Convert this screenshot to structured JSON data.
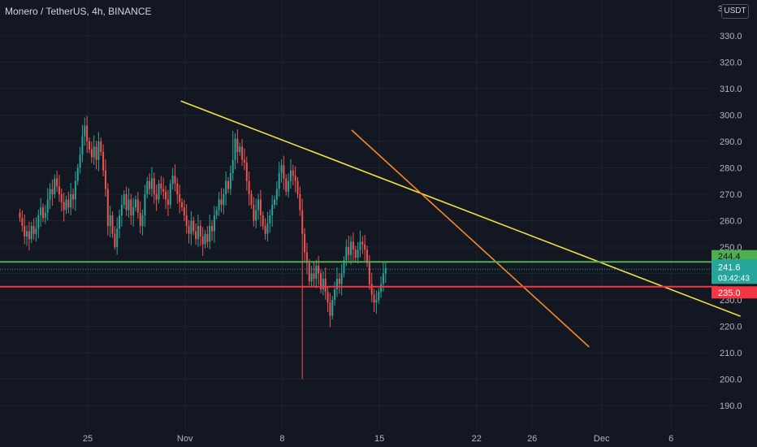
{
  "header": {
    "title": "Monero / TetherUS, 4h, BINANCE",
    "currency": "USDT",
    "top_axis_fragment": "3"
  },
  "colors": {
    "bg": "#131722",
    "up": "#26a69a",
    "down": "#ef5350",
    "grid": "#1e222d",
    "text": "#b2b5be",
    "yellow": "#f5e043",
    "orange": "#f7892a",
    "green": "#4caf50",
    "red": "#f23645"
  },
  "chart_data": {
    "type": "candlestick",
    "symbol": "XMR/USDT",
    "timeframe": "4h",
    "exchange": "BINANCE",
    "ylim": [
      182,
      336
    ],
    "y_ticks": [
      "330.0",
      "320.0",
      "310.0",
      "300.0",
      "290.0",
      "280.0",
      "270.0",
      "260.0",
      "250.0",
      "240.0",
      "230.0",
      "220.0",
      "210.0",
      "200.0",
      "190.0"
    ],
    "x_ticks": [
      {
        "label": "25",
        "day": 0
      },
      {
        "label": "Nov",
        "day": 7
      },
      {
        "label": "8",
        "day": 14
      },
      {
        "label": "15",
        "day": 21
      },
      {
        "label": "22",
        "day": 28
      },
      {
        "label": "26",
        "day": 32
      },
      {
        "label": "Dec",
        "day": 37
      },
      {
        "label": "6",
        "day": 42
      }
    ],
    "xlim_days": [
      -5.2,
      46.2
    ],
    "closes": [
      261,
      258,
      254,
      256,
      253,
      258,
      255,
      257,
      262,
      265,
      261,
      263,
      268,
      272,
      270,
      276,
      273,
      270,
      267,
      264,
      268,
      265,
      270,
      268,
      275,
      280,
      285,
      292,
      296,
      290,
      287,
      284,
      288,
      283,
      290,
      286,
      279,
      272,
      258,
      262,
      255,
      250,
      257,
      262,
      266,
      270,
      264,
      268,
      262,
      265,
      268,
      263,
      258,
      262,
      270,
      275,
      272,
      276,
      270,
      268,
      274,
      272,
      271,
      268,
      266,
      274,
      277,
      274,
      270,
      267,
      265,
      262,
      258,
      255,
      260,
      256,
      253,
      258,
      254,
      251,
      255,
      252,
      258,
      256,
      262,
      264,
      268,
      266,
      270,
      275,
      272,
      278,
      283,
      291,
      286,
      288,
      283,
      282,
      275,
      270,
      266,
      260,
      264,
      268,
      262,
      258,
      255,
      259,
      262,
      266,
      268,
      272,
      278,
      281,
      276,
      271,
      275,
      279,
      277,
      275,
      270,
      264,
      255,
      248,
      244,
      237,
      240,
      238,
      243,
      240,
      234,
      238,
      233,
      229,
      224,
      230,
      234,
      238,
      236,
      240,
      245,
      250,
      247,
      252,
      249,
      246,
      249,
      252,
      251,
      249,
      244,
      236,
      232,
      229,
      230,
      233,
      236,
      240,
      242
    ],
    "price_lines": [
      {
        "name": "green",
        "value": 244.4,
        "label": "244.4"
      },
      {
        "name": "red",
        "value": 235.0,
        "label": "235.0"
      }
    ],
    "last_price": {
      "value": 241.6,
      "label": "241.6",
      "countdown": "03:42:43"
    },
    "trendlines": [
      {
        "color": "yellow",
        "points": [
          [
            6.7,
            305.3
          ],
          [
            47.0,
            223.8
          ]
        ]
      },
      {
        "color": "orange",
        "points": [
          [
            19.0,
            294.3
          ],
          [
            36.1,
            212.2
          ]
        ]
      }
    ],
    "annotations": [
      "Monero / TetherUS, 4h, BINANCE"
    ]
  }
}
